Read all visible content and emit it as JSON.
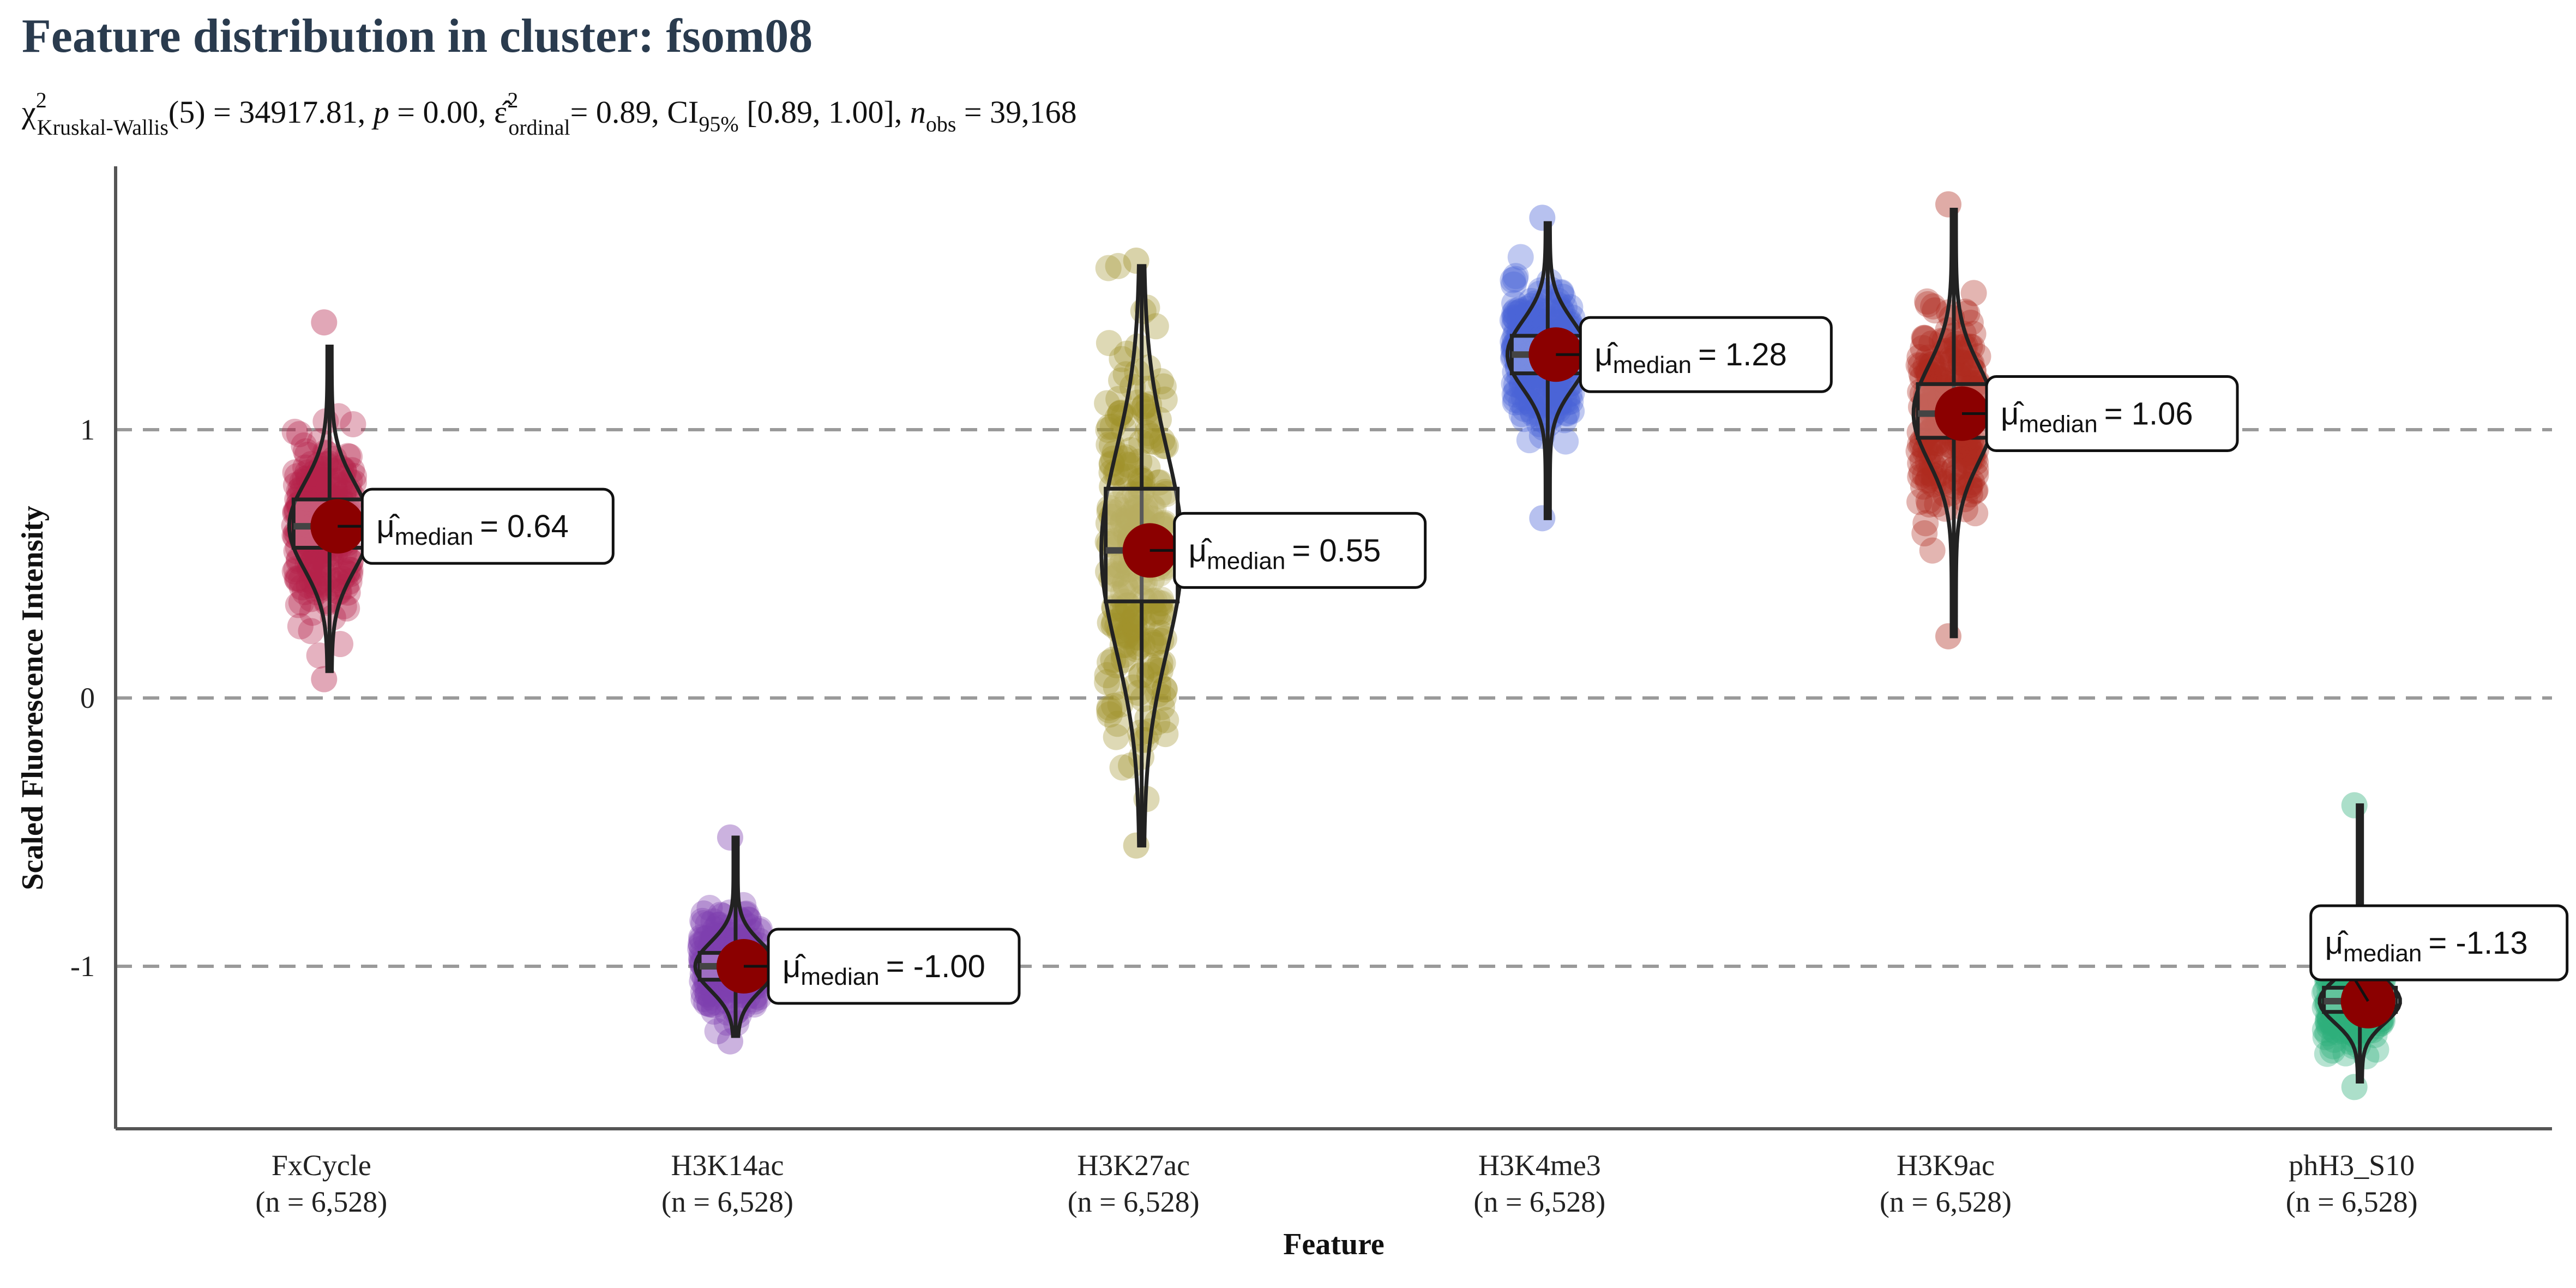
{
  "chart_data": {
    "type": "violin",
    "title": "Feature distribution in cluster: fsom08",
    "subtitle": {
      "chi_sq_symbol": "χ",
      "chi_sup": "2",
      "chi_sub": "Kruskal-Wallis",
      "df_text": "(5) = 34917.81,",
      "p_symbol": "p",
      "p_value": "= 0.00,",
      "eps_symbol": "ε̂",
      "eps_sup": "2",
      "eps_sub": "ordinal",
      "eps_value": "= 0.89, CI",
      "ci_sub": "95%",
      "ci_value": "[0.89, 1.00],",
      "n_symbol": "n",
      "n_sub": "obs",
      "n_value": "= 39,168"
    },
    "xlabel": "Feature",
    "ylabel": "Scaled Fluorescence Intensity",
    "ylim": [
      -1.6,
      2.0
    ],
    "yticks": [
      -1,
      0,
      1
    ],
    "ytick_labels": [
      "-1",
      "0",
      "1"
    ],
    "grid": "horizontal dashed at ticks",
    "median_label_prefix": "μ̂",
    "median_label_sub": "median",
    "categories": [
      {
        "name": "FxCycle",
        "n_label": "(n = 6,528)",
        "color": "#b5224a",
        "median": 0.64,
        "median_label": "= 0.64",
        "q1": 0.56,
        "q3": 0.74,
        "min": 0.07,
        "max": 1.4,
        "whisker_lo": 0.1,
        "whisker_hi": 1.31
      },
      {
        "name": "H3K14ac",
        "n_label": "(n = 6,528)",
        "color": "#7d3fb0",
        "median": -1.0,
        "median_label": "= -1.00",
        "q1": -1.05,
        "q3": -0.95,
        "min": -1.28,
        "max": -0.52,
        "whisker_lo": -1.26,
        "whisker_hi": -0.52
      },
      {
        "name": "H3K27ac",
        "n_label": "(n = 6,528)",
        "color": "#a0922a",
        "median": 0.55,
        "median_label": "= 0.55",
        "q1": 0.36,
        "q3": 0.78,
        "min": -0.55,
        "max": 1.63,
        "whisker_lo": -0.55,
        "whisker_hi": 1.61
      },
      {
        "name": "H3K4me3",
        "n_label": "(n = 6,528)",
        "color": "#4a63d6",
        "median": 1.28,
        "median_label": "= 1.28",
        "q1": 1.21,
        "q3": 1.35,
        "min": 0.67,
        "max": 1.79,
        "whisker_lo": 0.67,
        "whisker_hi": 1.77
      },
      {
        "name": "H3K9ac",
        "n_label": "(n = 6,528)",
        "color": "#b02c20",
        "median": 1.06,
        "median_label": "= 1.06",
        "q1": 0.97,
        "q3": 1.17,
        "min": 0.23,
        "max": 1.84,
        "whisker_lo": 0.23,
        "whisker_hi": 1.82
      },
      {
        "name": "phH3_S10",
        "n_label": "(n = 6,528)",
        "color": "#2fb07a",
        "median": -1.13,
        "median_label": "= -1.13",
        "q1": -1.17,
        "q3": -1.08,
        "min": -1.45,
        "max": -0.4,
        "whisker_lo": -1.43,
        "whisker_hi": -0.4
      }
    ],
    "median_point_color": "#8b0000",
    "axis_color": "#555555"
  }
}
